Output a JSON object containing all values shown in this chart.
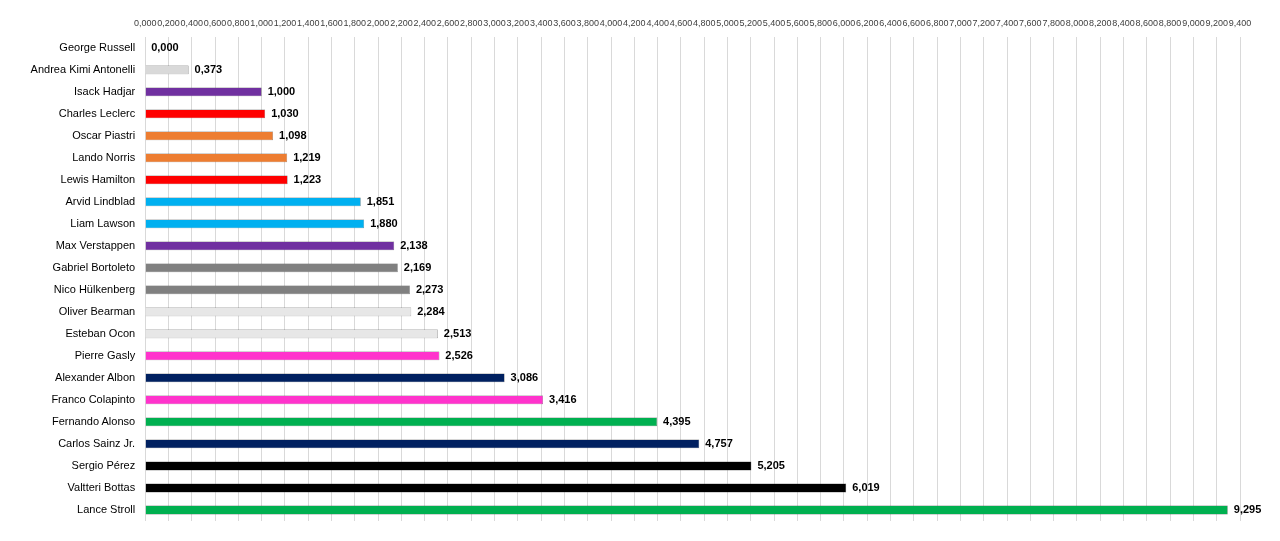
{
  "chart_data": {
    "type": "bar",
    "orientation": "horizontal",
    "categories": [
      "George Russell",
      "Andrea Kimi Antonelli",
      "Isack Hadjar",
      "Charles Leclerc",
      "Oscar Piastri",
      "Lando Norris",
      "Lewis Hamilton",
      "Arvid Lindblad",
      "Liam Lawson",
      "Max Verstappen",
      "Gabriel Bortoleto",
      "Nico Hülkenberg",
      "Oliver Bearman",
      "Esteban Ocon",
      "Pierre Gasly",
      "Alexander Albon",
      "Franco Colapinto",
      "Fernando Alonso",
      "Carlos Sainz Jr.",
      "Sergio Pérez",
      "Valtteri Bottas",
      "Lance Stroll"
    ],
    "values": [
      0,
      0.373,
      1,
      1.03,
      1.098,
      1.219,
      1.223,
      1.851,
      1.88,
      2.138,
      2.169,
      2.273,
      2.284,
      2.513,
      2.526,
      3.086,
      3.416,
      4.395,
      4.757,
      5.205,
      6.019,
      9.295
    ],
    "value_labels": [
      "0,000",
      "0,373",
      "1,000",
      "1,030",
      "1,098",
      "1,219",
      "1,223",
      "1,851",
      "1,880",
      "2,138",
      "2,169",
      "2,273",
      "2,284",
      "2,513",
      "2,526",
      "3,086",
      "3,416",
      "4,395",
      "4,757",
      "5,205",
      "6,019",
      "9,295"
    ],
    "colors": [
      "#bfbfbf",
      "#d9d9d9",
      "#7030a0",
      "#ff0000",
      "#ed7d31",
      "#ed7d31",
      "#ff0000",
      "#00b0f0",
      "#00b0f0",
      "#7030a0",
      "#808080",
      "#808080",
      "#e7e7e7",
      "#e7e7e7",
      "#ff33cc",
      "#002060",
      "#ff33cc",
      "#00b050",
      "#002060",
      "#000000",
      "#000000",
      "#00b050"
    ],
    "xlim": [
      0,
      9.4
    ],
    "xticks": [
      {
        "value": 0,
        "label": "0,000"
      },
      {
        "value": 0.2,
        "label": "0,200"
      },
      {
        "value": 0.4,
        "label": "0,400"
      },
      {
        "value": 0.6,
        "label": "0,600"
      },
      {
        "value": 0.8,
        "label": "0,800"
      },
      {
        "value": 1,
        "label": "1,000"
      },
      {
        "value": 1.2,
        "label": "1,200"
      },
      {
        "value": 1.4,
        "label": "1,400"
      },
      {
        "value": 1.6,
        "label": "1,600"
      },
      {
        "value": 1.8,
        "label": "1,800"
      },
      {
        "value": 2,
        "label": "2,000"
      },
      {
        "value": 2.2,
        "label": "2,200"
      },
      {
        "value": 2.4,
        "label": "2,400"
      },
      {
        "value": 2.6,
        "label": "2,600"
      },
      {
        "value": 2.8,
        "label": "2,800"
      },
      {
        "value": 3,
        "label": "3,000"
      },
      {
        "value": 3.2,
        "label": "3,200"
      },
      {
        "value": 3.4,
        "label": "3,400"
      },
      {
        "value": 3.6,
        "label": "3,600"
      },
      {
        "value": 3.8,
        "label": "3,800"
      },
      {
        "value": 4,
        "label": "4,000"
      },
      {
        "value": 4.2,
        "label": "4,200"
      },
      {
        "value": 4.4,
        "label": "4,400"
      },
      {
        "value": 4.6,
        "label": "4,600"
      },
      {
        "value": 4.8,
        "label": "4,800"
      },
      {
        "value": 5,
        "label": "5,000"
      },
      {
        "value": 5.2,
        "label": "5,200"
      },
      {
        "value": 5.4,
        "label": "5,400"
      },
      {
        "value": 5.6,
        "label": "5,600"
      },
      {
        "value": 5.8,
        "label": "5,800"
      },
      {
        "value": 6,
        "label": "6,000"
      },
      {
        "value": 6.2,
        "label": "6,200"
      },
      {
        "value": 6.4,
        "label": "6,400"
      },
      {
        "value": 6.6,
        "label": "6,600"
      },
      {
        "value": 6.8,
        "label": "6,800"
      },
      {
        "value": 7,
        "label": "7,000"
      },
      {
        "value": 7.2,
        "label": "7,200"
      },
      {
        "value": 7.4,
        "label": "7,400"
      },
      {
        "value": 7.6,
        "label": "7,600"
      },
      {
        "value": 7.8,
        "label": "7,800"
      },
      {
        "value": 8,
        "label": "8,000"
      },
      {
        "value": 8.2,
        "label": "8,200"
      },
      {
        "value": 8.4,
        "label": "8,400"
      },
      {
        "value": 8.6,
        "label": "8,600"
      },
      {
        "value": 8.8,
        "label": "8,800"
      },
      {
        "value": 9,
        "label": "9,000"
      },
      {
        "value": 9.2,
        "label": "9,200"
      },
      {
        "value": 9.4,
        "label": "9,400"
      }
    ],
    "grid": "x",
    "legend": false
  }
}
